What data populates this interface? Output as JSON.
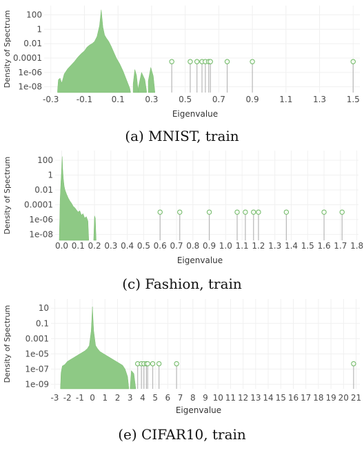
{
  "chart_data": [
    {
      "type": "area",
      "caption": "(a) MNIST, train",
      "xlabel": "Eigenvalue",
      "ylabel": "Density of Spectrum",
      "y_scale": "log",
      "xlim": [
        -0.34,
        1.54
      ],
      "ylim_exp": [
        -8.8,
        3.3
      ],
      "xticks": [
        "-0.3",
        "-0.1",
        "0.1",
        "0.3",
        "0.5",
        "0.7",
        "0.9",
        "1.1",
        "1.3",
        "1.5"
      ],
      "xtick_values": [
        -0.3,
        -0.1,
        0.1,
        0.3,
        0.5,
        0.7,
        0.9,
        1.1,
        1.3,
        1.5
      ],
      "yticks": [
        "100",
        "1",
        "0.01",
        "0.0001",
        "1e-06",
        "1e-08"
      ],
      "ytick_exps": [
        2,
        0,
        -2,
        -4,
        -6,
        -8
      ],
      "density_series": {
        "x": [
          -0.26,
          -0.255,
          -0.245,
          -0.235,
          -0.22,
          -0.2,
          -0.18,
          -0.16,
          -0.14,
          -0.12,
          -0.1,
          -0.085,
          -0.07,
          -0.055,
          -0.04,
          -0.025,
          -0.01,
          -0.005,
          0.0,
          0.005,
          0.01,
          0.02,
          0.03,
          0.045,
          0.06,
          0.075,
          0.09,
          0.1,
          0.11,
          0.12,
          0.13,
          0.14,
          0.15,
          0.16,
          0.17,
          0.175
        ],
        "log10_density": [
          -8.5,
          -7.0,
          -6.8,
          -7.5,
          -6.2,
          -5.5,
          -5.0,
          -4.5,
          -3.9,
          -3.4,
          -3.0,
          -2.5,
          -2.2,
          -2.0,
          -1.7,
          -1.0,
          0.5,
          1.6,
          2.7,
          1.5,
          0.3,
          -0.8,
          -1.2,
          -1.7,
          -2.4,
          -3.2,
          -4.0,
          -4.4,
          -4.8,
          -5.3,
          -5.8,
          -6.4,
          -7.0,
          -7.6,
          -8.2,
          -8.8
        ]
      },
      "density_islands": [
        {
          "x": [
            0.19,
            0.2,
            0.21,
            0.22
          ],
          "log10_density": [
            -7.6,
            -5.6,
            -6.4,
            -8.6
          ]
        },
        {
          "x": [
            0.22,
            0.24,
            0.26,
            0.27
          ],
          "log10_density": [
            -8.2,
            -6.0,
            -7.0,
            -8.6
          ]
        },
        {
          "x": [
            0.28,
            0.295,
            0.31,
            0.32
          ],
          "log10_density": [
            -7.2,
            -5.3,
            -6.5,
            -8.8
          ]
        }
      ],
      "outlier_eigenvalues": [
        0.42,
        0.53,
        0.57,
        0.6,
        0.62,
        0.64,
        0.65,
        0.75,
        0.9,
        1.5
      ],
      "outlier_log10_density": -4.5
    },
    {
      "type": "area",
      "caption": "(c) Fashion, train",
      "xlabel": "Eigenvalue",
      "ylabel": "Density of Spectrum",
      "y_scale": "log",
      "xlim": [
        -0.04,
        1.81
      ],
      "ylim_exp": [
        -8.8,
        3.3
      ],
      "xticks": [
        "0.0",
        "0.1",
        "0.2",
        "0.3",
        "0.4",
        "0.5",
        "0.6",
        "0.7",
        "0.8",
        "0.9",
        "1.0",
        "1.1",
        "1.2",
        "1.3",
        "1.4",
        "1.5",
        "1.6",
        "1.7",
        "1.8"
      ],
      "xtick_values": [
        0.0,
        0.1,
        0.2,
        0.3,
        0.4,
        0.5,
        0.6,
        0.7,
        0.8,
        0.9,
        1.0,
        1.1,
        1.2,
        1.3,
        1.4,
        1.5,
        1.6,
        1.7,
        1.8
      ],
      "yticks": [
        "100",
        "1",
        "0.01",
        "0.0001",
        "1e-06",
        "1e-08"
      ],
      "ytick_exps": [
        2,
        0,
        -2,
        -4,
        -6,
        -8
      ],
      "density_series": {
        "x": [
          -0.015,
          -0.012,
          -0.01,
          -0.005,
          0.0,
          0.003,
          0.006,
          0.01,
          0.015,
          0.02,
          0.03,
          0.04,
          0.05,
          0.06,
          0.07,
          0.08,
          0.09,
          0.1,
          0.11,
          0.12,
          0.13,
          0.14,
          0.15,
          0.16,
          0.165
        ],
        "log10_density": [
          -8.8,
          -6.0,
          -3.5,
          -1.0,
          1.0,
          2.5,
          0.8,
          -0.5,
          -1.5,
          -2.0,
          -2.6,
          -3.1,
          -3.5,
          -3.8,
          -4.2,
          -4.4,
          -4.7,
          -5.0,
          -4.8,
          -5.4,
          -5.2,
          -5.8,
          -5.6,
          -6.2,
          -8.8
        ]
      },
      "density_islands": [
        {
          "x": [
            0.195,
            0.2,
            0.205,
            0.21
          ],
          "log10_density": [
            -8.8,
            -5.5,
            -5.8,
            -8.8
          ]
        }
      ],
      "outlier_eigenvalues": [
        0.6,
        0.72,
        0.9,
        1.07,
        1.12,
        1.17,
        1.2,
        1.37,
        1.6,
        1.71
      ],
      "outlier_log10_density": -5.0
    },
    {
      "type": "area",
      "caption": "(e) CIFAR10, train",
      "xlabel": "Eigenvalue",
      "ylabel": "Density of Spectrum",
      "y_scale": "log",
      "xlim": [
        -3.3,
        21.3
      ],
      "ylim_exp": [
        -9.6,
        2.2
      ],
      "xticks": [
        "-3",
        "-2",
        "-1",
        "0",
        "1",
        "2",
        "3",
        "4",
        "5",
        "6",
        "7",
        "8",
        "9",
        "10",
        "11",
        "12",
        "13",
        "14",
        "15",
        "16",
        "17",
        "18",
        "19",
        "20",
        "21"
      ],
      "xtick_values": [
        -3,
        -2,
        -1,
        0,
        1,
        2,
        3,
        4,
        5,
        6,
        7,
        8,
        9,
        10,
        11,
        12,
        13,
        14,
        15,
        16,
        17,
        18,
        19,
        20,
        21
      ],
      "yticks": [
        "10",
        "0.1",
        "0.001",
        "1e-05",
        "1e-07",
        "1e-09"
      ],
      "ytick_exps": [
        1,
        -1,
        -3,
        -5,
        -7,
        -9
      ],
      "density_series": {
        "x": [
          -2.55,
          -2.5,
          -2.4,
          -2.2,
          -2.0,
          -1.8,
          -1.5,
          -1.2,
          -0.9,
          -0.6,
          -0.4,
          -0.25,
          -0.1,
          -0.05,
          0.0,
          0.05,
          0.1,
          0.25,
          0.4,
          0.6,
          0.9,
          1.2,
          1.5,
          1.8,
          2.1,
          2.4,
          2.6,
          2.8,
          2.9
        ],
        "log10_density": [
          -9.6,
          -7.5,
          -6.6,
          -6.4,
          -6.0,
          -5.8,
          -5.5,
          -5.2,
          -4.9,
          -4.6,
          -4.3,
          -3.9,
          -2.0,
          -0.5,
          1.2,
          -0.5,
          -2.0,
          -3.9,
          -4.3,
          -4.7,
          -5.0,
          -5.3,
          -5.6,
          -5.9,
          -6.2,
          -6.5,
          -7.0,
          -8.0,
          -9.6
        ]
      },
      "density_islands": [
        {
          "x": [
            3.0,
            3.1,
            3.3,
            3.45
          ],
          "log10_density": [
            -9.6,
            -7.2,
            -7.6,
            -9.6
          ]
        }
      ],
      "outlier_eigenvalues": [
        3.6,
        3.9,
        4.1,
        4.3,
        4.4,
        4.8,
        5.3,
        6.7,
        20.8
      ],
      "outlier_log10_density": -6.3
    }
  ],
  "colors": {
    "density_fill": "#8ec985",
    "density_stroke": "#7cbf72",
    "marker_stroke": "#6fb865",
    "stem": "#b7b7b7",
    "grid": "#f0f0f0",
    "text": "#4a4a4a"
  }
}
